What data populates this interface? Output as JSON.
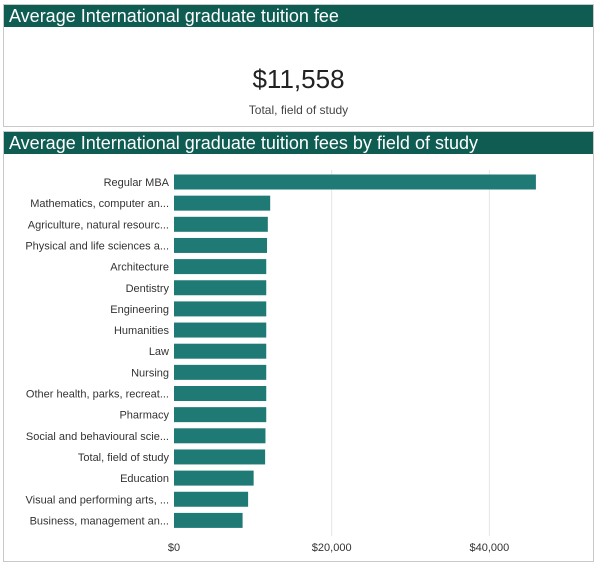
{
  "kpi": {
    "title": "Average International graduate tuition fee",
    "value": "$11,558",
    "caption": "Total, field of study"
  },
  "chart_panel": {
    "title": "Average International graduate tuition fees by field of study"
  },
  "colors": {
    "header_bg": "#0f5c53",
    "bar": "#1f7a76",
    "grid": "#e6e6e6"
  },
  "chart_data": {
    "type": "bar",
    "orientation": "horizontal",
    "title": "Average International graduate tuition fees by field of study",
    "categories": [
      "Regular MBA",
      "Mathematics, computer an...",
      "Agriculture, natural resourc...",
      "Physical and life sciences a...",
      "Architecture",
      "Dentistry",
      "Engineering",
      "Humanities",
      "Law",
      "Nursing",
      "Other health, parks, recreat...",
      "Pharmacy",
      "Social and behavioural scie...",
      "Total, field of study",
      "Education",
      "Visual and performing arts, ...",
      "Business, management an..."
    ],
    "values": [
      45900,
      12200,
      11900,
      11800,
      11700,
      11700,
      11700,
      11700,
      11700,
      11700,
      11700,
      11700,
      11600,
      11558,
      10100,
      9400,
      8700
    ],
    "xlim": [
      0,
      52000
    ],
    "xticks": [
      0,
      20000,
      40000
    ],
    "xtick_labels": [
      "$0",
      "$20,000",
      "$40,000"
    ],
    "grid": true
  }
}
